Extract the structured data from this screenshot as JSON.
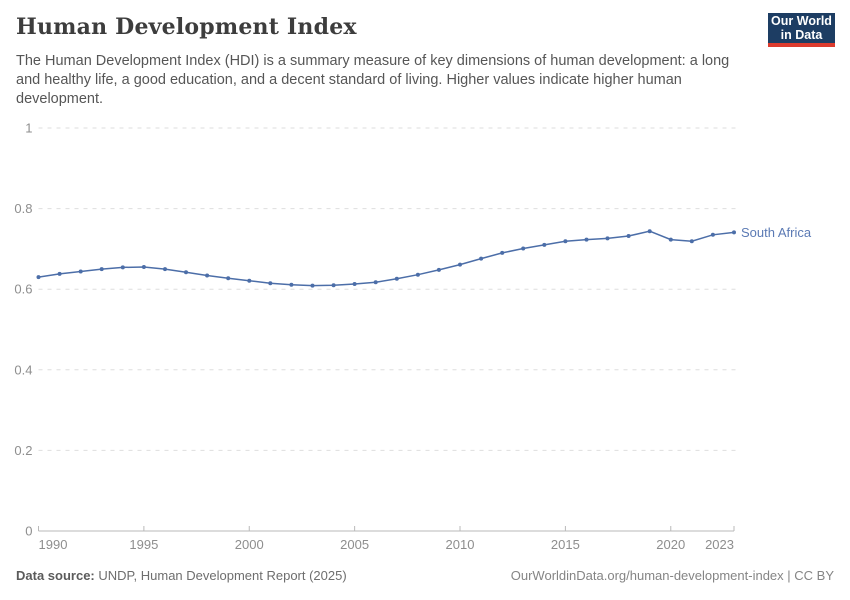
{
  "header": {
    "title": "Human Development Index",
    "subtitle": "The Human Development Index (HDI) is a summary measure of key dimensions of human development: a long and healthy life, a good education, and a decent standard of living. Higher values indicate higher human development.",
    "logo_line1": "Our World",
    "logo_line2": "in Data"
  },
  "footer": {
    "source_label": "Data source:",
    "source_text": " UNDP, Human Development Report (2025)",
    "link_text": "OurWorldinData.org/human-development-index | CC BY"
  },
  "colors": {
    "line": "#4C6EA8",
    "series_label": "#5B7AB4",
    "gridline": "#dedede",
    "axis_line": "#b9b9b9",
    "tick_label": "#8e8e8e",
    "logo_bg": "#1d3d63",
    "logo_red": "#dc3b2e"
  },
  "chart_data": {
    "type": "line",
    "title": "Human Development Index",
    "xlabel": "",
    "ylabel": "",
    "xlim": [
      1990,
      2023
    ],
    "ylim": [
      0,
      1
    ],
    "x_ticks": [
      1990,
      1995,
      2000,
      2005,
      2010,
      2015,
      2020,
      2023
    ],
    "y_ticks": [
      0,
      0.2,
      0.4,
      0.6,
      0.8,
      1
    ],
    "grid": "horizontal-dashed",
    "legend_position": "end-of-line-label",
    "end_label": "South Africa",
    "x": [
      1990,
      1991,
      1992,
      1993,
      1994,
      1995,
      1996,
      1997,
      1998,
      1999,
      2000,
      2001,
      2002,
      2003,
      2004,
      2005,
      2006,
      2007,
      2008,
      2009,
      2010,
      2011,
      2012,
      2013,
      2014,
      2015,
      2016,
      2017,
      2018,
      2019,
      2020,
      2021,
      2022,
      2023
    ],
    "series": [
      {
        "name": "South Africa",
        "color": "#4C6EA8",
        "values": [
          0.63,
          0.638,
          0.644,
          0.65,
          0.654,
          0.655,
          0.65,
          0.642,
          0.634,
          0.627,
          0.621,
          0.615,
          0.611,
          0.609,
          0.61,
          0.613,
          0.617,
          0.626,
          0.636,
          0.648,
          0.661,
          0.676,
          0.69,
          0.701,
          0.71,
          0.719,
          0.723,
          0.726,
          0.732,
          0.744,
          0.723,
          0.719,
          0.735,
          0.741
        ]
      }
    ]
  }
}
